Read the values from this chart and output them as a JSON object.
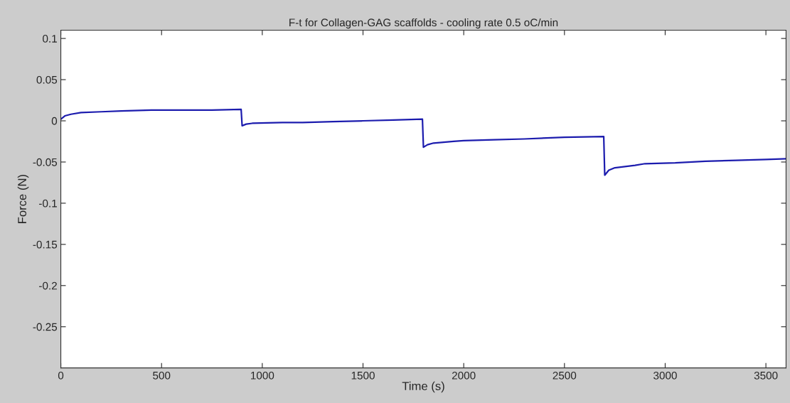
{
  "chart_data": {
    "type": "line",
    "title": "F-t for Collagen-GAG scaffolds - cooling rate 0.5 oC/min",
    "xlabel": "Time (s)",
    "ylabel": "Force (N)",
    "xlim": [
      0,
      3600
    ],
    "xticks": [
      0,
      500,
      1000,
      1500,
      2000,
      2500,
      3000,
      3500
    ],
    "ylim": [
      -0.3,
      0.11
    ],
    "yticks": [
      -0.25,
      -0.2,
      -0.15,
      -0.1,
      -0.05,
      0,
      0.05,
      0.1
    ],
    "grid": false,
    "legend": false,
    "marker": "none",
    "line_style": "solid",
    "series": [
      {
        "color": "#1c1cae",
        "x": [
          0,
          20,
          50,
          100,
          200,
          300,
          450,
          600,
          750,
          895,
          900,
          920,
          950,
          1100,
          1200,
          1350,
          1500,
          1650,
          1795,
          1800,
          1820,
          1850,
          1950,
          2000,
          2150,
          2300,
          2500,
          2695,
          2700,
          2720,
          2750,
          2850,
          2900,
          3050,
          3200,
          3350,
          3500,
          3600
        ],
        "values": [
          0.002,
          0.006,
          0.008,
          0.01,
          0.011,
          0.012,
          0.013,
          0.013,
          0.013,
          0.014,
          -0.006,
          -0.004,
          -0.003,
          -0.002,
          -0.002,
          -0.001,
          0.0,
          0.001,
          0.002,
          -0.032,
          -0.029,
          -0.027,
          -0.025,
          -0.024,
          -0.023,
          -0.022,
          -0.02,
          -0.019,
          -0.066,
          -0.06,
          -0.057,
          -0.054,
          -0.052,
          -0.051,
          -0.049,
          -0.048,
          -0.047,
          -0.046
        ]
      }
    ]
  }
}
